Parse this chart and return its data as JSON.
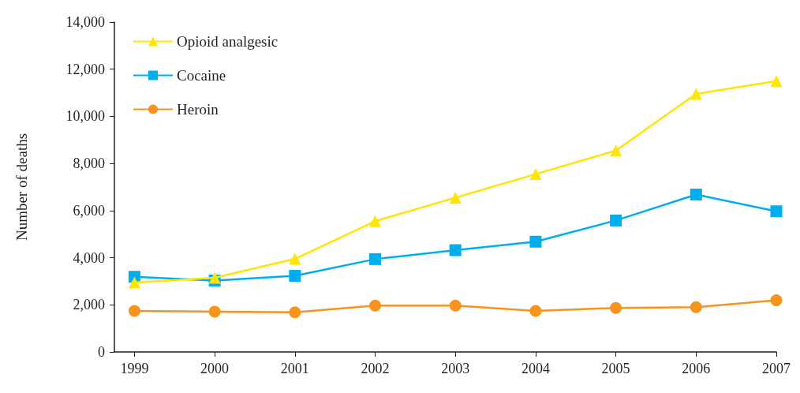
{
  "chart_data": {
    "type": "line",
    "ylabel": "Number of deaths",
    "x": [
      1999,
      2000,
      2001,
      2002,
      2003,
      2004,
      2005,
      2006,
      2007
    ],
    "xlim": [
      1998.75,
      2007
    ],
    "xticks": [
      1999,
      2000,
      2001,
      2002,
      2003,
      2004,
      2005,
      2006,
      2007
    ],
    "ylim": [
      0,
      14000
    ],
    "yticks": [
      0,
      {
        "value": 2000,
        "label": "2,000"
      },
      {
        "value": 4000,
        "label": "4,000"
      },
      {
        "value": 6000,
        "label": "6,000"
      },
      {
        "value": 8000,
        "label": "8,000"
      },
      {
        "value": 10000,
        "label": "10,000"
      },
      {
        "value": 12000,
        "label": "12,000"
      },
      {
        "value": 14000,
        "label": "14,000"
      }
    ],
    "grid": false,
    "legend": "top left",
    "series": [
      {
        "name": "Opioid analgesic",
        "color": "#ffe600",
        "marker": "triangle",
        "values": [
          2950,
          3150,
          3950,
          5550,
          6550,
          7550,
          8550,
          10950,
          11500
        ]
      },
      {
        "name": "Cocaine",
        "color": "#00aeef",
        "marker": "square",
        "values": [
          3190,
          3030,
          3230,
          3940,
          4320,
          4680,
          5580,
          6680,
          5970
        ]
      },
      {
        "name": "Heroin",
        "color": "#f7941d",
        "marker": "circle",
        "values": [
          1740,
          1710,
          1680,
          1970,
          1970,
          1740,
          1870,
          1900,
          2190
        ]
      }
    ]
  }
}
